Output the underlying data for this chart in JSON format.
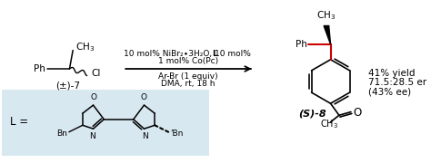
{
  "reagent_line1": "10 mol% NiBr₂∙3H₂O, 10 mol% ",
  "reagent_line1_bold": "L",
  "reagent_line2": "1 mol% Co(Pc)",
  "condition_line1": "Ar-Br (1 equiv)",
  "condition_line2": "DMA, rt, 18 h",
  "starting_material_label": "(±)-7",
  "product_label": "(S)-8",
  "yield_text1": "41% yield",
  "yield_text2": "71.5:28.5 er",
  "yield_text3": "(43% ee)",
  "ligand_label": "L =",
  "bg_color": "#ffffff",
  "ligand_bg_color": "#d8e8f0",
  "red_bond_color": "#cc0000",
  "font_size": 7.5,
  "small_font_size": 6.5
}
